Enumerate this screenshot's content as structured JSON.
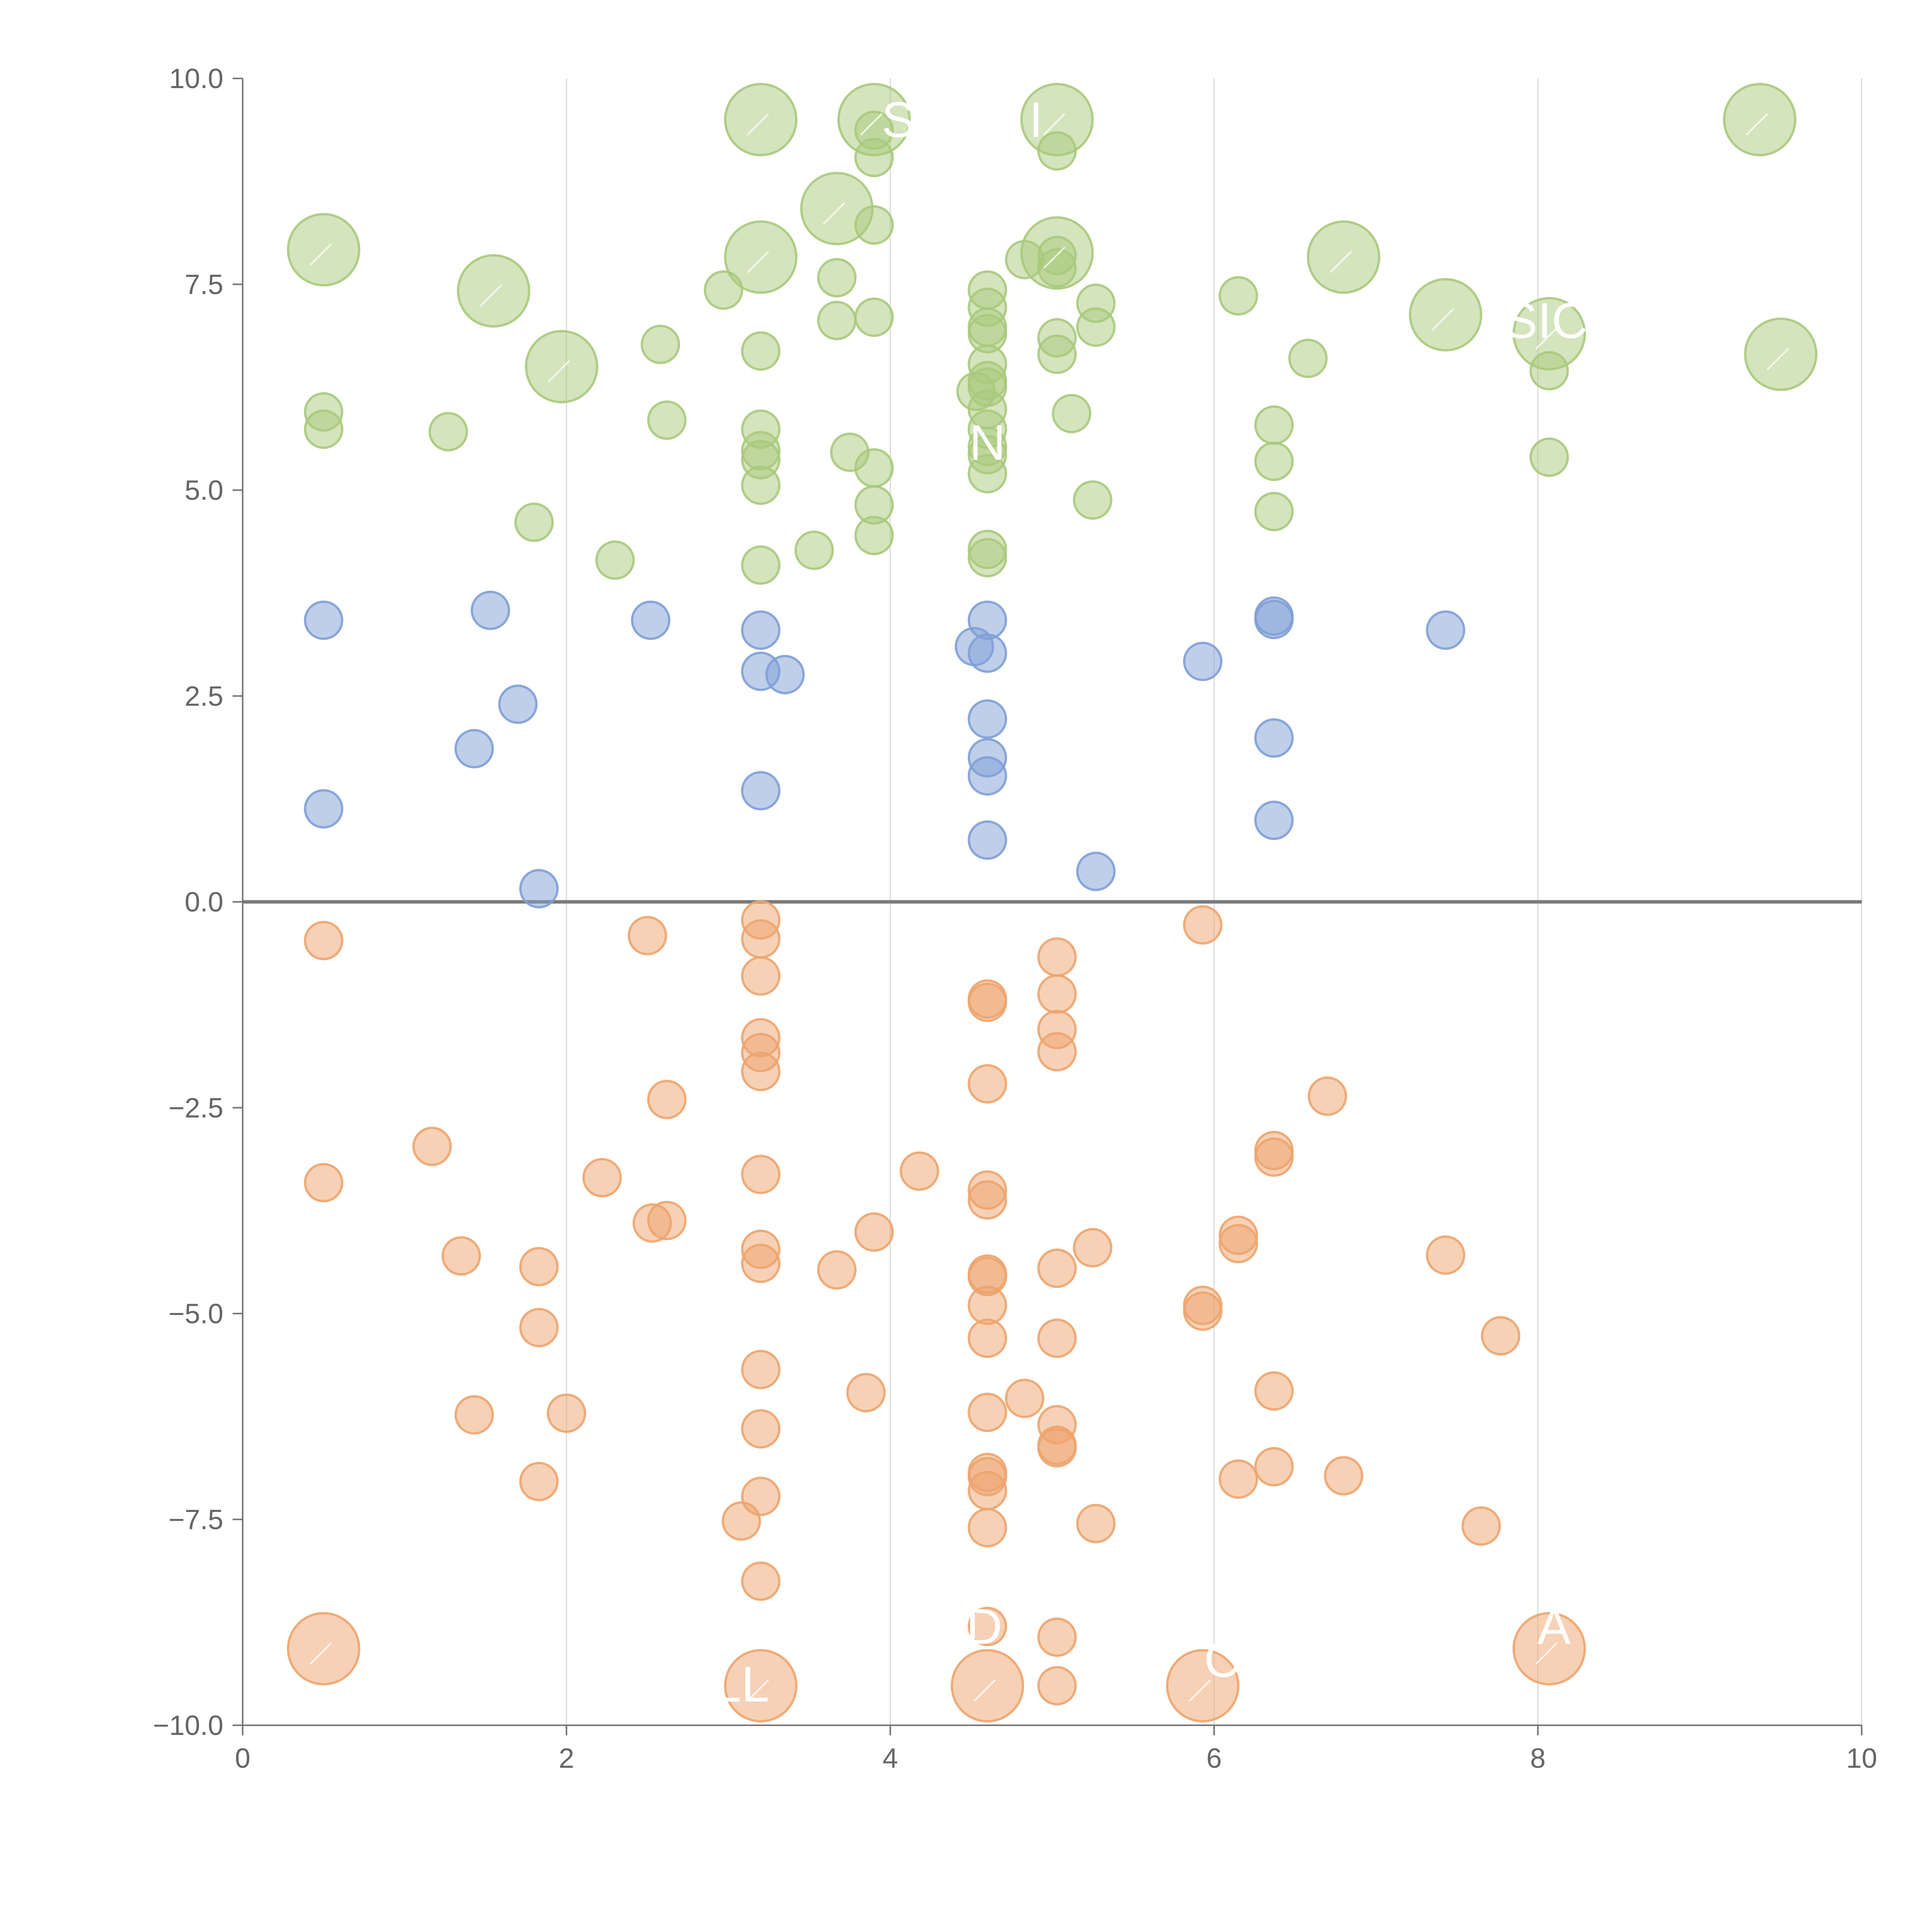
{
  "chart_data": {
    "type": "scatter",
    "title": "",
    "xlabel": "",
    "ylabel": "",
    "xlim": [
      0,
      10
    ],
    "ylim": [
      -10,
      10
    ],
    "x_ticks": [
      0,
      2,
      4,
      6,
      8,
      10
    ],
    "y_ticks": [
      -10,
      -7.5,
      -5,
      -2.5,
      0,
      2.5,
      5,
      7.5,
      10
    ],
    "x_tick_labels": [
      "0",
      "2",
      "4",
      "6",
      "8",
      "10"
    ],
    "y_tick_labels": [
      "−10.0",
      "−7.5",
      "−5.0",
      "−2.5",
      "0.0",
      "2.5",
      "5.0",
      "7.5",
      "10.0"
    ],
    "grid": "vertical",
    "zero_line": true,
    "colors": {
      "green": "#a9c97c",
      "blue": "#7f9fd6",
      "orange": "#eda46d"
    },
    "series": [
      {
        "name": "green",
        "color": "#a9c97c",
        "points": [
          [
            0.5,
            7.92,
            "L"
          ],
          [
            1.55,
            7.42,
            "L"
          ],
          [
            1.97,
            6.5,
            "L"
          ],
          [
            3.2,
            9.5,
            "L"
          ],
          [
            3.2,
            7.83,
            "L"
          ],
          [
            3.67,
            8.42,
            "L"
          ],
          [
            3.9,
            9.5,
            "L"
          ],
          [
            5.03,
            9.5,
            "L"
          ],
          [
            5.03,
            7.88,
            "L"
          ],
          [
            6.8,
            7.83,
            "L"
          ],
          [
            7.43,
            7.13,
            "L"
          ],
          [
            8.07,
            6.9,
            "L"
          ],
          [
            9.37,
            9.5,
            "L"
          ],
          [
            9.5,
            6.65,
            "L"
          ],
          [
            0.5,
            5.95,
            "S"
          ],
          [
            0.5,
            5.74,
            "S"
          ],
          [
            1.27,
            5.71,
            "S"
          ],
          [
            1.8,
            4.61,
            "S"
          ],
          [
            2.3,
            4.15,
            "S"
          ],
          [
            2.58,
            6.77,
            "S"
          ],
          [
            2.62,
            5.85,
            "S"
          ],
          [
            2.97,
            7.43,
            "S"
          ],
          [
            3.2,
            6.69,
            "S"
          ],
          [
            3.2,
            5.74,
            "S"
          ],
          [
            3.2,
            5.48,
            "S"
          ],
          [
            3.2,
            5.37,
            "S"
          ],
          [
            3.2,
            5.06,
            "S"
          ],
          [
            3.2,
            4.09,
            "S"
          ],
          [
            3.53,
            4.27,
            "S"
          ],
          [
            3.67,
            7.58,
            "S"
          ],
          [
            3.67,
            7.06,
            "S"
          ],
          [
            3.75,
            5.46,
            "S"
          ],
          [
            3.9,
            9.37,
            "S"
          ],
          [
            3.9,
            9.04,
            "S"
          ],
          [
            3.9,
            8.22,
            "S"
          ],
          [
            3.9,
            7.1,
            "S"
          ],
          [
            3.9,
            5.27,
            "S"
          ],
          [
            3.9,
            4.82,
            "S"
          ],
          [
            3.9,
            4.45,
            "S"
          ],
          [
            4.6,
            7.43,
            "S"
          ],
          [
            4.6,
            7.22,
            "S"
          ],
          [
            4.6,
            6.98,
            "S"
          ],
          [
            4.6,
            6.9,
            "S"
          ],
          [
            4.6,
            6.53,
            "S"
          ],
          [
            4.6,
            6.33,
            "S"
          ],
          [
            4.6,
            6.25,
            "S"
          ],
          [
            4.6,
            5.98,
            "S"
          ],
          [
            4.6,
            5.74,
            "S"
          ],
          [
            4.6,
            5.53,
            "S"
          ],
          [
            4.6,
            5.43,
            "S"
          ],
          [
            4.6,
            5.2,
            "S"
          ],
          [
            4.6,
            4.28,
            "S"
          ],
          [
            4.6,
            4.18,
            "S"
          ],
          [
            4.53,
            6.2,
            "S"
          ],
          [
            4.83,
            7.8,
            "S"
          ],
          [
            5.03,
            9.12,
            "S"
          ],
          [
            5.03,
            7.85,
            "S"
          ],
          [
            5.03,
            7.7,
            "S"
          ],
          [
            5.03,
            6.85,
            "S"
          ],
          [
            5.03,
            6.65,
            "S"
          ],
          [
            5.12,
            5.93,
            "S"
          ],
          [
            5.25,
            4.88,
            "S"
          ],
          [
            5.27,
            7.27,
            "S"
          ],
          [
            5.27,
            6.98,
            "S"
          ],
          [
            6.15,
            7.36,
            "S"
          ],
          [
            6.37,
            5.79,
            "S"
          ],
          [
            6.37,
            5.35,
            "S"
          ],
          [
            6.37,
            4.74,
            "S"
          ],
          [
            6.58,
            6.6,
            "S"
          ],
          [
            8.07,
            6.45,
            "S"
          ],
          [
            8.07,
            5.4,
            "S"
          ]
        ]
      },
      {
        "name": "blue",
        "color": "#7f9fd6",
        "points": [
          [
            0.5,
            3.42,
            "S"
          ],
          [
            0.5,
            1.13,
            "S"
          ],
          [
            1.43,
            1.86,
            "S"
          ],
          [
            1.53,
            3.54,
            "S"
          ],
          [
            1.7,
            2.4,
            "S"
          ],
          [
            1.83,
            0.16,
            "S"
          ],
          [
            2.52,
            3.42,
            "S"
          ],
          [
            3.2,
            3.3,
            "S"
          ],
          [
            3.2,
            2.8,
            "S"
          ],
          [
            3.2,
            1.35,
            "S"
          ],
          [
            3.35,
            2.76,
            "S"
          ],
          [
            4.52,
            3.1,
            "S"
          ],
          [
            4.6,
            3.42,
            "S"
          ],
          [
            4.6,
            3.02,
            "S"
          ],
          [
            4.6,
            2.22,
            "S"
          ],
          [
            4.6,
            1.75,
            "S"
          ],
          [
            4.6,
            1.53,
            "S"
          ],
          [
            4.6,
            0.75,
            "S"
          ],
          [
            5.27,
            0.37,
            "S"
          ],
          [
            5.93,
            2.92,
            "S"
          ],
          [
            6.37,
            3.47,
            "S"
          ],
          [
            6.37,
            3.43,
            "S"
          ],
          [
            6.37,
            1.99,
            "S"
          ],
          [
            6.37,
            0.99,
            "S"
          ],
          [
            7.43,
            3.3,
            "S"
          ]
        ]
      },
      {
        "name": "orange",
        "color": "#eda46d",
        "points": [
          [
            0.5,
            -9.07,
            "L"
          ],
          [
            3.2,
            -9.52,
            "L"
          ],
          [
            4.6,
            -9.52,
            "L"
          ],
          [
            5.93,
            -9.52,
            "L"
          ],
          [
            8.07,
            -9.07,
            "L"
          ],
          [
            0.5,
            -0.47,
            "S"
          ],
          [
            0.5,
            -3.41,
            "S"
          ],
          [
            1.17,
            -2.97,
            "S"
          ],
          [
            1.35,
            -4.3,
            "S"
          ],
          [
            1.43,
            -6.23,
            "S"
          ],
          [
            1.83,
            -4.43,
            "S"
          ],
          [
            1.83,
            -5.17,
            "S"
          ],
          [
            1.83,
            -7.04,
            "S"
          ],
          [
            2.0,
            -6.21,
            "S"
          ],
          [
            2.22,
            -3.35,
            "S"
          ],
          [
            2.5,
            -0.41,
            "S"
          ],
          [
            2.53,
            -3.9,
            "S"
          ],
          [
            2.62,
            -2.4,
            "S"
          ],
          [
            2.62,
            -3.87,
            "S"
          ],
          [
            3.08,
            -7.52,
            "S"
          ],
          [
            3.2,
            -0.22,
            "S"
          ],
          [
            3.2,
            -0.45,
            "S"
          ],
          [
            3.2,
            -0.9,
            "S"
          ],
          [
            3.2,
            -1.65,
            "S"
          ],
          [
            3.2,
            -1.83,
            "S"
          ],
          [
            3.2,
            -2.06,
            "S"
          ],
          [
            3.2,
            -3.31,
            "S"
          ],
          [
            3.2,
            -4.22,
            "S"
          ],
          [
            3.2,
            -4.39,
            "S"
          ],
          [
            3.2,
            -5.68,
            "S"
          ],
          [
            3.2,
            -6.4,
            "S"
          ],
          [
            3.2,
            -7.22,
            "S"
          ],
          [
            3.2,
            -8.25,
            "S"
          ],
          [
            3.67,
            -4.47,
            "S"
          ],
          [
            3.85,
            -5.96,
            "S"
          ],
          [
            3.9,
            -4.01,
            "S"
          ],
          [
            4.18,
            -3.27,
            "S"
          ],
          [
            4.6,
            -1.18,
            "S"
          ],
          [
            4.6,
            -1.22,
            "S"
          ],
          [
            4.6,
            -2.21,
            "S"
          ],
          [
            4.6,
            -3.5,
            "S"
          ],
          [
            4.6,
            -3.62,
            "S"
          ],
          [
            4.6,
            -4.52,
            "S"
          ],
          [
            4.6,
            -4.55,
            "S"
          ],
          [
            4.6,
            -4.9,
            "S"
          ],
          [
            4.6,
            -5.3,
            "S"
          ],
          [
            4.6,
            -6.2,
            "S"
          ],
          [
            4.6,
            -6.93,
            "S"
          ],
          [
            4.6,
            -6.98,
            "S"
          ],
          [
            4.6,
            -7.15,
            "S"
          ],
          [
            4.6,
            -7.6,
            "S"
          ],
          [
            4.6,
            -8.8,
            "S"
          ],
          [
            4.83,
            -6.03,
            "S"
          ],
          [
            5.03,
            -0.67,
            "S"
          ],
          [
            5.03,
            -1.12,
            "S"
          ],
          [
            5.03,
            -1.55,
            "S"
          ],
          [
            5.03,
            -1.82,
            "S"
          ],
          [
            5.03,
            -4.45,
            "S"
          ],
          [
            5.03,
            -5.3,
            "S"
          ],
          [
            5.03,
            -6.35,
            "S"
          ],
          [
            5.03,
            -6.6,
            "S"
          ],
          [
            5.03,
            -6.63,
            "S"
          ],
          [
            5.03,
            -8.93,
            "S"
          ],
          [
            5.03,
            -9.52,
            "S"
          ],
          [
            5.25,
            -4.2,
            "S"
          ],
          [
            5.27,
            -7.55,
            "S"
          ],
          [
            5.93,
            -0.28,
            "S"
          ],
          [
            5.93,
            -4.9,
            "S"
          ],
          [
            5.93,
            -4.97,
            "S"
          ],
          [
            6.15,
            -4.05,
            "S"
          ],
          [
            6.15,
            -4.15,
            "S"
          ],
          [
            6.15,
            -7.01,
            "S"
          ],
          [
            6.37,
            -3.02,
            "S"
          ],
          [
            6.37,
            -3.1,
            "S"
          ],
          [
            6.37,
            -5.94,
            "S"
          ],
          [
            6.37,
            -6.86,
            "S"
          ],
          [
            6.7,
            -2.36,
            "S"
          ],
          [
            6.8,
            -6.97,
            "S"
          ],
          [
            7.43,
            -4.29,
            "S"
          ],
          [
            7.65,
            -7.58,
            "S"
          ],
          [
            7.77,
            -5.27,
            "S"
          ]
        ]
      }
    ],
    "annotations": [
      {
        "text": "S",
        "x": 4.05,
        "y": 9.5
      },
      {
        "text": "I",
        "x": 4.9,
        "y": 9.5
      },
      {
        "text": "SIC",
        "x": 8.05,
        "y": 7.06
      },
      {
        "text": "N",
        "x": 4.6,
        "y": 5.58
      },
      {
        "text": "LL",
        "x": 3.08,
        "y": -9.5
      },
      {
        "text": "D",
        "x": 4.58,
        "y": -8.8
      },
      {
        "text": "C",
        "x": 6.05,
        "y": -9.2
      },
      {
        "text": "A",
        "x": 8.1,
        "y": -8.8
      }
    ]
  }
}
